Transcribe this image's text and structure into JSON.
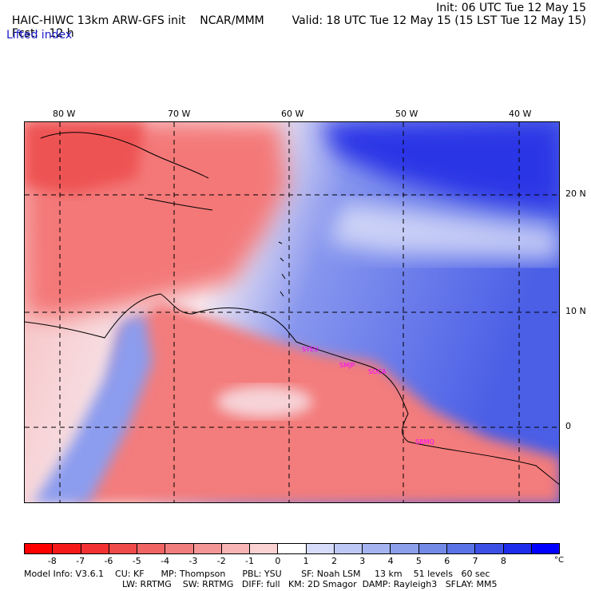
{
  "header": {
    "model": "HAIC-HIWC 13km ARW-GFS init",
    "org": "NCAR/MMM",
    "fcst_label": "Fcst:",
    "fcst_value": "12 h",
    "init": "Init: 06 UTC Tue 12 May 15",
    "valid": "Valid: 18 UTC Tue 12 May 15 (15 LST Tue 12 May 15)",
    "field": "Lifted index"
  },
  "map": {
    "lon_labels": [
      "80 W",
      "70 W",
      "60 W",
      "50 W",
      "40 W"
    ],
    "lat_labels": [
      "20 N",
      "10 N",
      "0"
    ],
    "sites": [
      "SYEU",
      "SMJP",
      "SOCA",
      "SBMQ"
    ],
    "colors": {
      "negative": "#f56e6e",
      "positive": "#4f63e8",
      "deep_positive": "#1a1ae6",
      "neutral": "#f7f2f5"
    }
  },
  "colorbar": {
    "ticks": [
      "-8",
      "-7",
      "-6",
      "-5",
      "-4",
      "-3",
      "-2",
      "-1",
      "0",
      "1",
      "2",
      "3",
      "4",
      "5",
      "6",
      "7",
      "8"
    ],
    "unit": "°C",
    "colors": [
      "#ff0000",
      "#f51919",
      "#f23232",
      "#f04b4b",
      "#f06464",
      "#f27d7d",
      "#f59696",
      "#f8b4b4",
      "#fad2d2",
      "#ffffff",
      "#d7dcfa",
      "#bec8f5",
      "#a5b4f0",
      "#8c9feb",
      "#738ae6",
      "#5a73e6",
      "#3c50e6",
      "#1e2deb",
      "#0000ff"
    ]
  },
  "footer": {
    "line1": "Model Info: V3.6.1    CU: KF      MP: Thompson      PBL: YSU       SF: Noah LSM     13 km    51 levels   60 sec",
    "line2": "LW: RRTMG    SW: RRTMG   DIFF: full   KM: 2D Smagor  DAMP: Rayleigh3   SFLAY: MM5"
  }
}
